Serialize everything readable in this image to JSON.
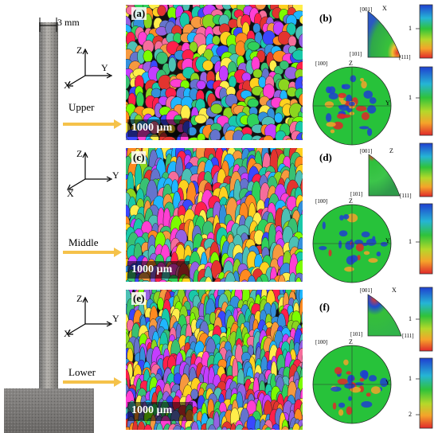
{
  "dimension": "3 mm",
  "sample_regions": [
    "Upper",
    "Middle",
    "Lower"
  ],
  "axes": {
    "z": "Z",
    "y": "Y",
    "x": "X"
  },
  "panels": {
    "a": "(a)",
    "b": "(b)",
    "c": "(c)",
    "d": "(d)",
    "e": "(e)",
    "f": "(f)"
  },
  "scale_bar": "1000 µm",
  "ipf_upper": {
    "c001": "[001]",
    "c101": "[101]",
    "c111": "[111]",
    "dir": "X",
    "v1": "1"
  },
  "pf_upper": {
    "c100": "[100]",
    "z": "Z",
    "y": "Y",
    "v1": "1"
  },
  "ipf_middle": {
    "c001": "[001]",
    "c101": "[101]",
    "c111": "[111]",
    "dir": "Z"
  },
  "pf_middle": {
    "c100": "[100]",
    "z": "Z",
    "y": "Y",
    "v1": "1"
  },
  "ipf_lower": {
    "c001": "[001]",
    "c101": "[101]",
    "c111": "[111]",
    "dir": "X",
    "v1": "1"
  },
  "pf_lower": {
    "c100": "[100]",
    "z": "Z",
    "y": "Y",
    "v1": "1",
    "v2": "2"
  },
  "colors": {
    "arrow": "#f5c24a",
    "pf_green": "#27c23a",
    "pf_blue": "#1f3fd0",
    "pf_red": "#e0282a"
  }
}
